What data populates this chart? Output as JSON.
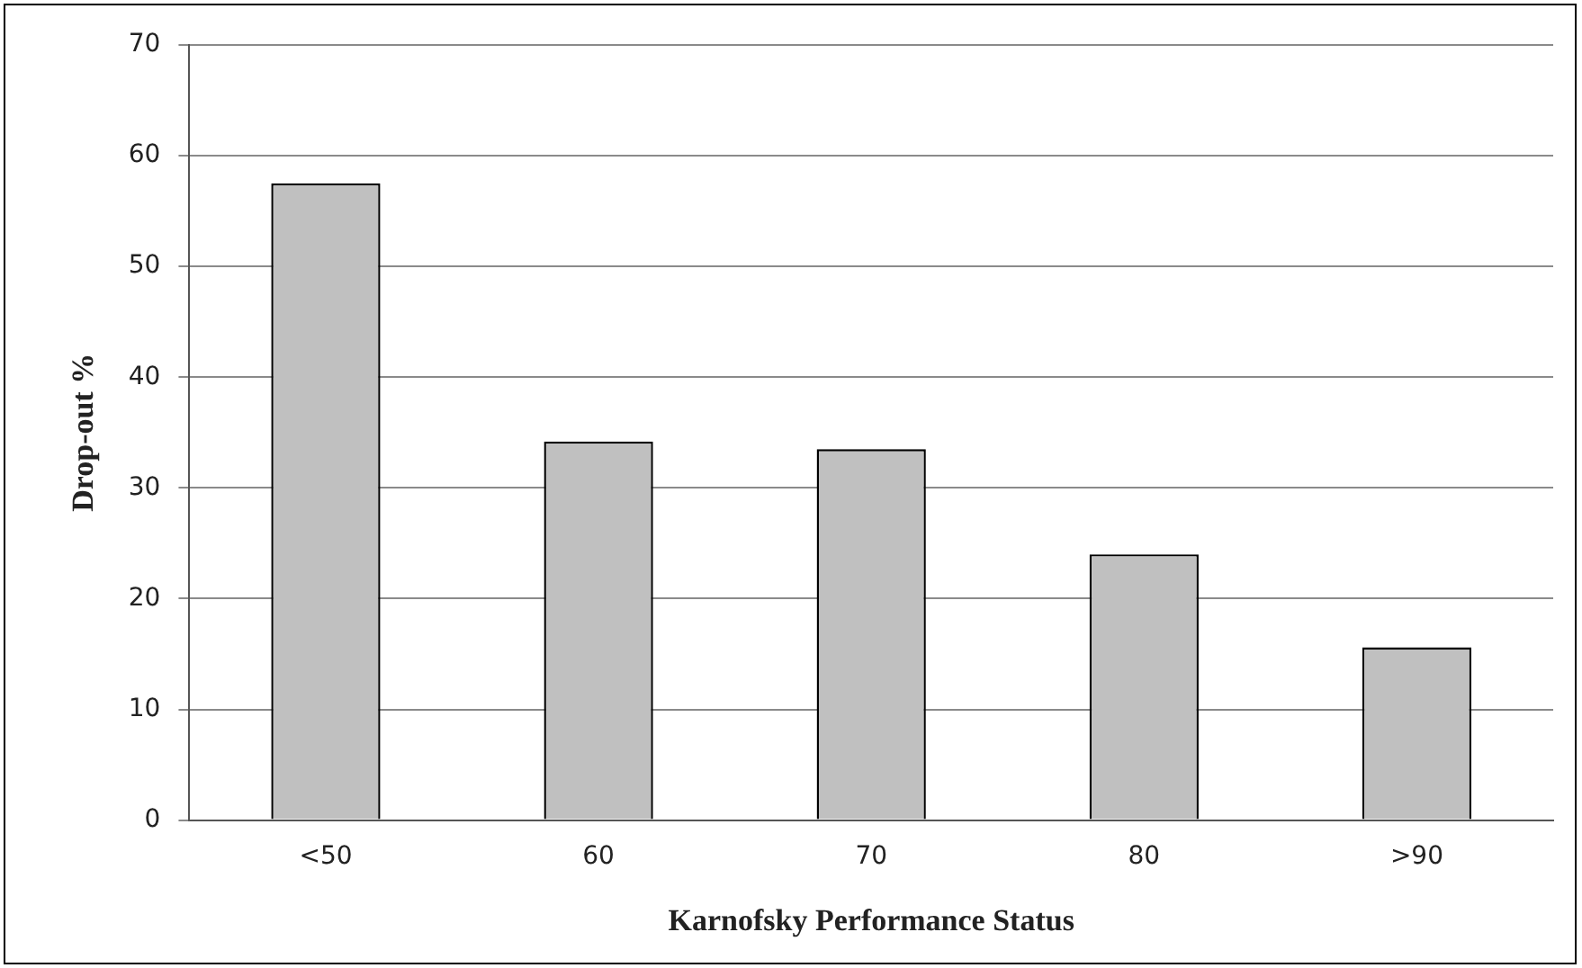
{
  "chart_data": {
    "type": "bar",
    "xlabel": "Karnofsky Performance Status",
    "ylabel": "Drop-out %",
    "categories": [
      "<50",
      "60",
      "70",
      "80",
      ">90"
    ],
    "values": [
      57.5,
      34.2,
      33.5,
      24.0,
      15.6
    ],
    "color": "#c0c0c0",
    "ylim": [
      0,
      70
    ],
    "yticks": [
      0,
      10,
      20,
      30,
      40,
      50,
      60,
      70
    ],
    "grid": "y",
    "legend": false
  }
}
